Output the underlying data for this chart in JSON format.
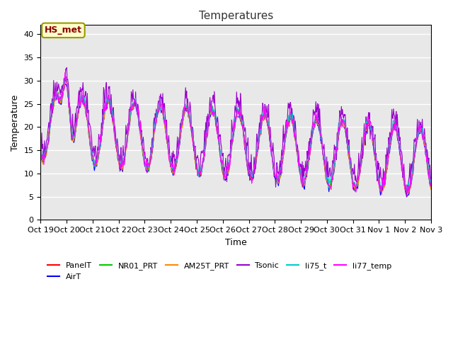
{
  "title": "Temperatures",
  "xlabel": "Time",
  "ylabel": "Temperature",
  "ylim": [
    0,
    42
  ],
  "yticks": [
    0,
    5,
    10,
    15,
    20,
    25,
    30,
    35,
    40
  ],
  "bg_color": "#e8e8e8",
  "fig_color": "#ffffff",
  "annotation_text": "HS_met",
  "annotation_color": "#8B0000",
  "annotation_bg": "#ffffcc",
  "annotation_border": "#999900",
  "series_colors": {
    "PanelT": "#ff0000",
    "AirT": "#0000ff",
    "NR01_PRT": "#00cc00",
    "AM25T_PRT": "#ff8800",
    "Tsonic": "#9900cc",
    "li75_t": "#00cccc",
    "li77_temp": "#ff00ff"
  },
  "xtick_labels": [
    "Oct 19",
    "Oct 20",
    "Oct 21",
    "Oct 22",
    "Oct 23",
    "Oct 24",
    "Oct 25",
    "Oct 26",
    "Oct 27",
    "Oct 28",
    "Oct 29",
    "Oct 30",
    "Oct 31",
    "Nov 1",
    "Nov 2",
    "Nov 3"
  ],
  "n_days": 15,
  "pts_per_day": 48
}
